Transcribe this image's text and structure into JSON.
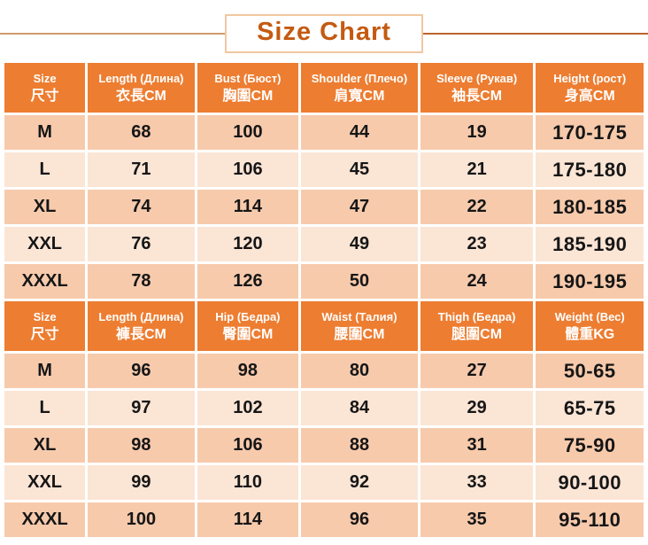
{
  "title": "Size Chart",
  "colors": {
    "header-bg": "#ED7D31",
    "row-dark": "#F7CAAC",
    "row-light": "#FBE5D5",
    "title-color": "#C45A11",
    "box-border": "#F2C7A0",
    "line-left": "#D09A6C",
    "line-right": "#BC652F"
  },
  "chart_data": [
    {
      "type": "table",
      "section": "tops",
      "headers": [
        {
          "en": "Size",
          "cjk": "尺寸"
        },
        {
          "en": "Length (Длина)",
          "cjk": "衣長CM"
        },
        {
          "en": "Bust (Бюст)",
          "cjk": "胸圍CM"
        },
        {
          "en": "Shoulder (Плечо)",
          "cjk": "肩寬CM"
        },
        {
          "en": "Sleeve (Рукав)",
          "cjk": "袖長CM"
        },
        {
          "en": "Height (рост)",
          "cjk": "身高CM"
        }
      ],
      "rows": [
        [
          "M",
          "68",
          "100",
          "44",
          "19",
          "170-175"
        ],
        [
          "L",
          "71",
          "106",
          "45",
          "21",
          "175-180"
        ],
        [
          "XL",
          "74",
          "114",
          "47",
          "22",
          "180-185"
        ],
        [
          "XXL",
          "76",
          "120",
          "49",
          "23",
          "185-190"
        ],
        [
          "XXXL",
          "78",
          "126",
          "50",
          "24",
          "190-195"
        ]
      ]
    },
    {
      "type": "table",
      "section": "bottoms",
      "headers": [
        {
          "en": "Size",
          "cjk": "尺寸"
        },
        {
          "en": "Length (Длина)",
          "cjk": "褲長CM"
        },
        {
          "en": "Hip (Бедра)",
          "cjk": "臀圍CM"
        },
        {
          "en": "Waist (Талия)",
          "cjk": "腰圍CM"
        },
        {
          "en": "Thigh (Бедра)",
          "cjk": "腿圍CM"
        },
        {
          "en": "Weight (Вес)",
          "cjk": "體重KG"
        }
      ],
      "rows": [
        [
          "M",
          "96",
          "98",
          "80",
          "27",
          "50-65"
        ],
        [
          "L",
          "97",
          "102",
          "84",
          "29",
          "65-75"
        ],
        [
          "XL",
          "98",
          "106",
          "88",
          "31",
          "75-90"
        ],
        [
          "XXL",
          "99",
          "110",
          "92",
          "33",
          "90-100"
        ],
        [
          "XXXL",
          "100",
          "114",
          "96",
          "35",
          "95-110"
        ]
      ]
    }
  ]
}
